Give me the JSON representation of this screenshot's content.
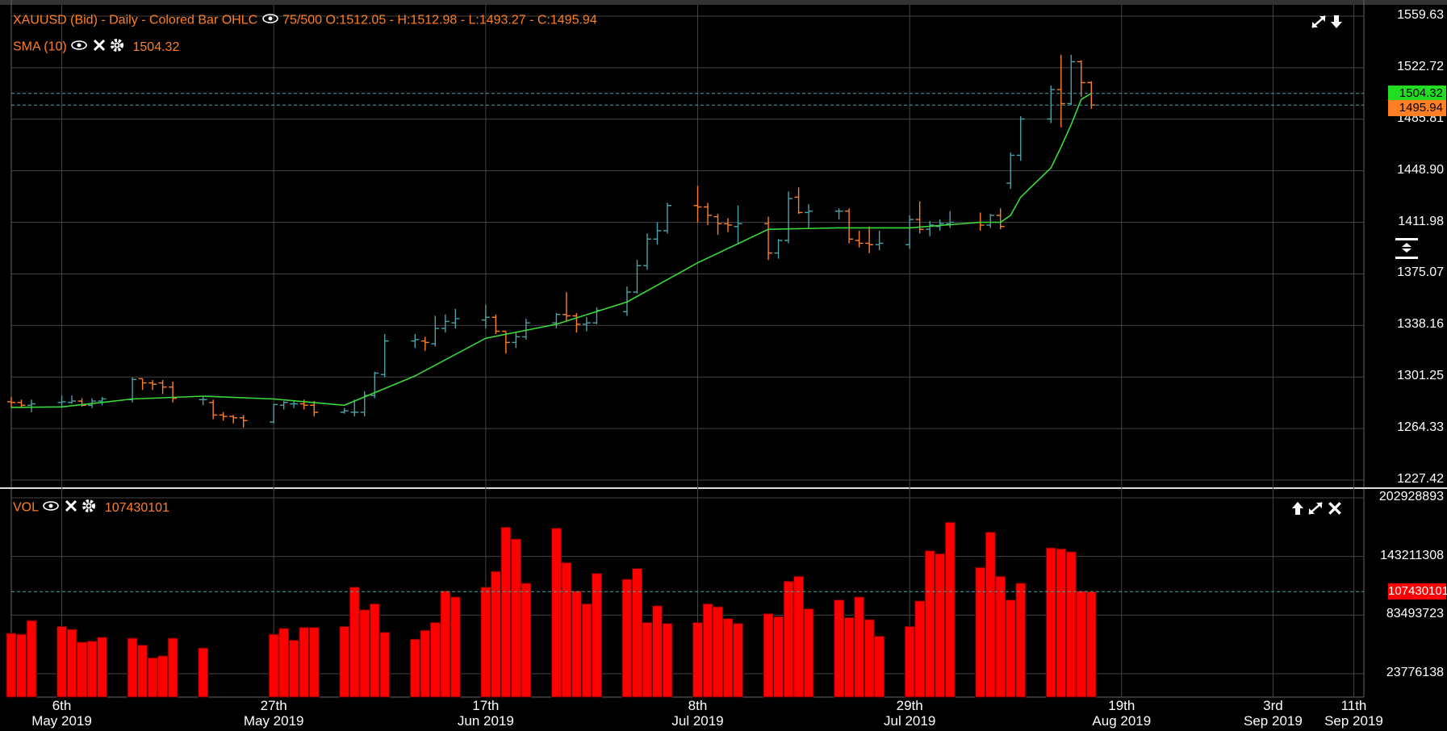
{
  "colors": {
    "up_bar": "#4aa3a8",
    "down_bar": "#ff7f24",
    "sma": "#3cd93c",
    "volume": "#ff0000",
    "grid": "#444444",
    "legend_text": "#ff7f24",
    "axis_text": "#ffffff",
    "sma_badge": "#22dd22",
    "close_badge": "#ff7f24",
    "vol_badge": "#ff0000"
  },
  "price_panel": {
    "title": "XAUUSD (Bid) - Daily - Colored Bar OHLC",
    "count": "75/500",
    "ohlc": "O:1512.05 - H:1512.98 - L:1493.27 - C:1495.94",
    "sma_label": "SMA (10)",
    "sma_value": "1504.32",
    "sma_badge": "1504.32",
    "close_badge": "1495.94",
    "icons": [
      "eye-icon",
      "close-icon",
      "gear-icon",
      "expand-icon",
      "arrow-down-icon"
    ]
  },
  "volume_panel": {
    "label": "VOL",
    "value": "107430101",
    "badge": "107430101",
    "icons": [
      "eye-icon",
      "close-icon",
      "gear-icon",
      "arrow-up-icon",
      "expand-icon",
      "close-icon"
    ]
  },
  "chart_data": {
    "type": "ohlc",
    "price_axis": {
      "ticks": [
        1559.63,
        1522.72,
        1485.81,
        1448.9,
        1411.98,
        1375.07,
        1338.16,
        1301.25,
        1264.33,
        1227.42
      ],
      "tick_labels": [
        "1559.63",
        "1522.72",
        "1485.81",
        "1448.90",
        "1411.98",
        "1375.07",
        "1338.16",
        "1301.25",
        "1264.33",
        "1227.42"
      ],
      "ylim": [
        1227.42,
        1559.63
      ]
    },
    "volume_axis": {
      "ticks": [
        202928893,
        143211308,
        83493723,
        23776138
      ],
      "tick_labels": [
        "202928893",
        "143211308",
        "83493723",
        "23776138"
      ],
      "ylim": [
        0,
        202928893
      ]
    },
    "x_axis": {
      "labels": [
        {
          "day": "6th",
          "month": "May 2019",
          "date": "2019-05-06"
        },
        {
          "day": "27th",
          "month": "May 2019",
          "date": "2019-05-27"
        },
        {
          "day": "17th",
          "month": "Jun 2019",
          "date": "2019-06-17"
        },
        {
          "day": "8th",
          "month": "Jul 2019",
          "date": "2019-07-08"
        },
        {
          "day": "29th",
          "month": "Jul 2019",
          "date": "2019-07-29"
        },
        {
          "day": "19th",
          "month": "Aug 2019",
          "date": "2019-08-19"
        },
        {
          "day": "3rd",
          "month": "Sep 2019",
          "date": "2019-09-03"
        },
        {
          "day": "11th",
          "month": "Sep 2019",
          "date": "2019-09-11"
        }
      ],
      "xlim": [
        "2019-05-01",
        "2019-09-12"
      ]
    },
    "bars": [
      {
        "date": "2019-05-01",
        "o": 1283.5,
        "h": 1287,
        "l": 1279,
        "c": 1283
      },
      {
        "date": "2019-05-02",
        "o": 1283,
        "h": 1285,
        "l": 1279,
        "c": 1281
      },
      {
        "date": "2019-05-03",
        "o": 1281,
        "h": 1285,
        "l": 1276,
        "c": 1282
      },
      {
        "date": "2019-05-06",
        "o": 1283,
        "h": 1288,
        "l": 1279,
        "c": 1283.5
      },
      {
        "date": "2019-05-07",
        "o": 1283,
        "h": 1288,
        "l": 1282,
        "c": 1284
      },
      {
        "date": "2019-05-08",
        "o": 1284,
        "h": 1286,
        "l": 1280,
        "c": 1281
      },
      {
        "date": "2019-05-09",
        "o": 1281,
        "h": 1286,
        "l": 1279,
        "c": 1284
      },
      {
        "date": "2019-05-10",
        "o": 1284,
        "h": 1287,
        "l": 1281,
        "c": 1285.5
      },
      {
        "date": "2019-05-13",
        "o": 1285,
        "h": 1301,
        "l": 1283,
        "c": 1299.5
      },
      {
        "date": "2019-05-14",
        "o": 1300,
        "h": 1300,
        "l": 1292,
        "c": 1297
      },
      {
        "date": "2019-05-15",
        "o": 1297,
        "h": 1299,
        "l": 1292,
        "c": 1296
      },
      {
        "date": "2019-05-16",
        "o": 1297,
        "h": 1299,
        "l": 1289,
        "c": 1294
      },
      {
        "date": "2019-05-17",
        "o": 1294,
        "h": 1298,
        "l": 1283,
        "c": 1286
      },
      {
        "date": "2019-05-20",
        "o": 1285,
        "h": 1287,
        "l": 1281,
        "c": 1285
      },
      {
        "date": "2019-05-21",
        "o": 1283,
        "h": 1285,
        "l": 1271,
        "c": 1274
      },
      {
        "date": "2019-05-22",
        "o": 1274,
        "h": 1276,
        "l": 1270,
        "c": 1273
      },
      {
        "date": "2019-05-23",
        "o": 1273,
        "h": 1274,
        "l": 1268,
        "c": 1272
      },
      {
        "date": "2019-05-24",
        "o": 1272,
        "h": 1274,
        "l": 1265,
        "c": 1270
      },
      {
        "date": "2019-05-27",
        "o": 1269,
        "h": 1282,
        "l": 1268,
        "c": 1281.5
      },
      {
        "date": "2019-05-28",
        "o": 1281,
        "h": 1284,
        "l": 1278,
        "c": 1283
      },
      {
        "date": "2019-05-29",
        "o": 1282,
        "h": 1284,
        "l": 1279,
        "c": 1282
      },
      {
        "date": "2019-05-30",
        "o": 1282,
        "h": 1285,
        "l": 1278,
        "c": 1281
      },
      {
        "date": "2019-05-31",
        "o": 1281,
        "h": 1284,
        "l": 1273,
        "c": 1276
      },
      {
        "date": "2019-06-03",
        "o": 1276,
        "h": 1279,
        "l": 1275,
        "c": 1277
      },
      {
        "date": "2019-06-04",
        "o": 1276,
        "h": 1285,
        "l": 1273,
        "c": 1276
      },
      {
        "date": "2019-06-05",
        "o": 1276,
        "h": 1291,
        "l": 1273,
        "c": 1288
      },
      {
        "date": "2019-06-06",
        "o": 1288,
        "h": 1305,
        "l": 1286,
        "c": 1304
      },
      {
        "date": "2019-06-07",
        "o": 1303,
        "h": 1332,
        "l": 1301,
        "c": 1327
      },
      {
        "date": "2019-06-10",
        "o": 1327,
        "h": 1332,
        "l": 1322,
        "c": 1328
      },
      {
        "date": "2019-06-11",
        "o": 1327,
        "h": 1330,
        "l": 1320,
        "c": 1326
      },
      {
        "date": "2019-06-12",
        "o": 1325,
        "h": 1345,
        "l": 1323,
        "c": 1336
      },
      {
        "date": "2019-06-13",
        "o": 1336,
        "h": 1346,
        "l": 1333,
        "c": 1341
      },
      {
        "date": "2019-06-14",
        "o": 1340,
        "h": 1350,
        "l": 1336,
        "c": 1343
      },
      {
        "date": "2019-06-17",
        "o": 1342,
        "h": 1353,
        "l": 1336,
        "c": 1344
      },
      {
        "date": "2019-06-18",
        "o": 1344,
        "h": 1346,
        "l": 1332,
        "c": 1334
      },
      {
        "date": "2019-06-19",
        "o": 1334,
        "h": 1334,
        "l": 1318,
        "c": 1326
      },
      {
        "date": "2019-06-20",
        "o": 1326,
        "h": 1333,
        "l": 1322,
        "c": 1330
      },
      {
        "date": "2019-06-21",
        "o": 1330,
        "h": 1343,
        "l": 1328,
        "c": 1340
      },
      {
        "date": "2019-06-24",
        "o": 1340,
        "h": 1347,
        "l": 1336,
        "c": 1346
      },
      {
        "date": "2019-06-25",
        "o": 1346,
        "h": 1362,
        "l": 1341,
        "c": 1345
      },
      {
        "date": "2019-06-26",
        "o": 1345,
        "h": 1347,
        "l": 1333,
        "c": 1339
      },
      {
        "date": "2019-06-27",
        "o": 1339,
        "h": 1344,
        "l": 1334,
        "c": 1340
      },
      {
        "date": "2019-06-28",
        "o": 1340,
        "h": 1351,
        "l": 1339,
        "c": 1349
      },
      {
        "date": "2019-07-01",
        "o": 1348,
        "h": 1366,
        "l": 1345,
        "c": 1362
      },
      {
        "date": "2019-07-02",
        "o": 1362,
        "h": 1385,
        "l": 1361,
        "c": 1381
      },
      {
        "date": "2019-07-03",
        "o": 1381,
        "h": 1404,
        "l": 1378,
        "c": 1400
      },
      {
        "date": "2019-07-04",
        "o": 1400,
        "h": 1412,
        "l": 1396,
        "c": 1406
      },
      {
        "date": "2019-07-05",
        "o": 1406,
        "h": 1426,
        "l": 1404,
        "c": 1424
      },
      {
        "date": "2019-07-08",
        "o": 1424,
        "h": 1438,
        "l": 1412,
        "c": 1423
      },
      {
        "date": "2019-07-09",
        "o": 1423,
        "h": 1426,
        "l": 1410,
        "c": 1417
      },
      {
        "date": "2019-07-10",
        "o": 1416,
        "h": 1418,
        "l": 1403,
        "c": 1411
      },
      {
        "date": "2019-07-11",
        "o": 1411,
        "h": 1415,
        "l": 1405,
        "c": 1410
      },
      {
        "date": "2019-07-12",
        "o": 1409,
        "h": 1424,
        "l": 1397,
        "c": 1411
      },
      {
        "date": "2019-07-15",
        "o": 1411,
        "h": 1416,
        "l": 1385,
        "c": 1390
      },
      {
        "date": "2019-07-16",
        "o": 1390,
        "h": 1400,
        "l": 1386,
        "c": 1399
      },
      {
        "date": "2019-07-17",
        "o": 1399,
        "h": 1434,
        "l": 1397,
        "c": 1429
      },
      {
        "date": "2019-07-18",
        "o": 1430,
        "h": 1437,
        "l": 1418,
        "c": 1419
      },
      {
        "date": "2019-07-19",
        "o": 1419,
        "h": 1425,
        "l": 1408,
        "c": 1420
      },
      {
        "date": "2019-07-22",
        "o": 1420,
        "h": 1422,
        "l": 1414,
        "c": 1420
      },
      {
        "date": "2019-07-23",
        "o": 1420,
        "h": 1422,
        "l": 1397,
        "c": 1400
      },
      {
        "date": "2019-07-24",
        "o": 1399,
        "h": 1406,
        "l": 1394,
        "c": 1397
      },
      {
        "date": "2019-07-25",
        "o": 1397,
        "h": 1409,
        "l": 1390,
        "c": 1396
      },
      {
        "date": "2019-07-26",
        "o": 1396,
        "h": 1406,
        "l": 1392,
        "c": 1397
      },
      {
        "date": "2019-07-29",
        "o": 1396,
        "h": 1417,
        "l": 1393,
        "c": 1414
      },
      {
        "date": "2019-07-30",
        "o": 1414,
        "h": 1427,
        "l": 1404,
        "c": 1407
      },
      {
        "date": "2019-07-31",
        "o": 1407,
        "h": 1413,
        "l": 1402,
        "c": 1410
      },
      {
        "date": "2019-08-01",
        "o": 1409,
        "h": 1414,
        "l": 1406,
        "c": 1411
      },
      {
        "date": "2019-08-02",
        "o": 1411,
        "h": 1420,
        "l": 1408,
        "c": 1412
      },
      {
        "date": "2019-08-05",
        "o": 1412,
        "h": 1419,
        "l": 1406,
        "c": 1410
      },
      {
        "date": "2019-08-06",
        "o": 1410,
        "h": 1418,
        "l": 1408,
        "c": 1417
      },
      {
        "date": "2019-08-07",
        "o": 1417,
        "h": 1422,
        "l": 1407,
        "c": 1409
      }
    ],
    "sma": {
      "name": "SMA (10)",
      "points": [
        {
          "date": "2019-05-01",
          "v": 1279.5
        },
        {
          "date": "2019-05-06",
          "v": 1279.8
        },
        {
          "date": "2019-05-13",
          "v": 1285.5
        },
        {
          "date": "2019-05-20",
          "v": 1287.5
        },
        {
          "date": "2019-05-27",
          "v": 1285.5
        },
        {
          "date": "2019-06-03",
          "v": 1281
        },
        {
          "date": "2019-06-10",
          "v": 1302
        },
        {
          "date": "2019-06-17",
          "v": 1329
        },
        {
          "date": "2019-06-24",
          "v": 1339
        },
        {
          "date": "2019-07-01",
          "v": 1355
        },
        {
          "date": "2019-07-08",
          "v": 1383
        },
        {
          "date": "2019-07-15",
          "v": 1407
        },
        {
          "date": "2019-07-22",
          "v": 1408
        },
        {
          "date": "2019-07-29",
          "v": 1408
        },
        {
          "date": "2019-08-05",
          "v": 1412
        },
        {
          "date": "2019-08-07",
          "v": 1412
        }
      ]
    },
    "volume": [
      {
        "date": "2019-05-01",
        "v": 65000000
      },
      {
        "date": "2019-05-02",
        "v": 64000000
      },
      {
        "date": "2019-05-03",
        "v": 78000000
      },
      {
        "date": "2019-05-06",
        "v": 72000000
      },
      {
        "date": "2019-05-07",
        "v": 69000000
      },
      {
        "date": "2019-05-08",
        "v": 56000000
      },
      {
        "date": "2019-05-09",
        "v": 57000000
      },
      {
        "date": "2019-05-10",
        "v": 61000000
      },
      {
        "date": "2019-05-13",
        "v": 60000000
      },
      {
        "date": "2019-05-14",
        "v": 53000000
      },
      {
        "date": "2019-05-15",
        "v": 40000000
      },
      {
        "date": "2019-05-16",
        "v": 42000000
      },
      {
        "date": "2019-05-17",
        "v": 60000000
      },
      {
        "date": "2019-05-20",
        "v": 50000000
      },
      {
        "date": "2019-05-27",
        "v": 64000000
      },
      {
        "date": "2019-05-28",
        "v": 70000000
      },
      {
        "date": "2019-05-29",
        "v": 58000000
      },
      {
        "date": "2019-05-30",
        "v": 71000000
      },
      {
        "date": "2019-05-31",
        "v": 71000000
      },
      {
        "date": "2019-06-03",
        "v": 72000000
      },
      {
        "date": "2019-06-04",
        "v": 112000000
      },
      {
        "date": "2019-06-05",
        "v": 89000000
      },
      {
        "date": "2019-06-06",
        "v": 95000000
      },
      {
        "date": "2019-06-07",
        "v": 66000000
      },
      {
        "date": "2019-06-10",
        "v": 59000000
      },
      {
        "date": "2019-06-11",
        "v": 68000000
      },
      {
        "date": "2019-06-12",
        "v": 76000000
      },
      {
        "date": "2019-06-13",
        "v": 108000000
      },
      {
        "date": "2019-06-14",
        "v": 102000000
      },
      {
        "date": "2019-06-17",
        "v": 112000000
      },
      {
        "date": "2019-06-18",
        "v": 128000000
      },
      {
        "date": "2019-06-19",
        "v": 173000000
      },
      {
        "date": "2019-06-20",
        "v": 161000000
      },
      {
        "date": "2019-06-21",
        "v": 116000000
      },
      {
        "date": "2019-06-24",
        "v": 172000000
      },
      {
        "date": "2019-06-25",
        "v": 137000000
      },
      {
        "date": "2019-06-26",
        "v": 108000000
      },
      {
        "date": "2019-06-27",
        "v": 95000000
      },
      {
        "date": "2019-06-28",
        "v": 126000000
      },
      {
        "date": "2019-07-01",
        "v": 120000000
      },
      {
        "date": "2019-07-02",
        "v": 131000000
      },
      {
        "date": "2019-07-03",
        "v": 76000000
      },
      {
        "date": "2019-07-04",
        "v": 93000000
      },
      {
        "date": "2019-07-05",
        "v": 75000000
      },
      {
        "date": "2019-07-08",
        "v": 76000000
      },
      {
        "date": "2019-07-09",
        "v": 95000000
      },
      {
        "date": "2019-07-10",
        "v": 92000000
      },
      {
        "date": "2019-07-11",
        "v": 80000000
      },
      {
        "date": "2019-07-12",
        "v": 75000000
      },
      {
        "date": "2019-07-15",
        "v": 85000000
      },
      {
        "date": "2019-07-16",
        "v": 82000000
      },
      {
        "date": "2019-07-17",
        "v": 118000000
      },
      {
        "date": "2019-07-18",
        "v": 123000000
      },
      {
        "date": "2019-07-19",
        "v": 90000000
      },
      {
        "date": "2019-07-22",
        "v": 99000000
      },
      {
        "date": "2019-07-23",
        "v": 81000000
      },
      {
        "date": "2019-07-24",
        "v": 102000000
      },
      {
        "date": "2019-07-25",
        "v": 79000000
      },
      {
        "date": "2019-07-26",
        "v": 62000000
      },
      {
        "date": "2019-07-29",
        "v": 72000000
      },
      {
        "date": "2019-07-30",
        "v": 98000000
      },
      {
        "date": "2019-07-31",
        "v": 149000000
      },
      {
        "date": "2019-08-01",
        "v": 146000000
      },
      {
        "date": "2019-08-02",
        "v": 178000000
      },
      {
        "date": "2019-08-05",
        "v": 132000000
      },
      {
        "date": "2019-08-06",
        "v": 168000000
      },
      {
        "date": "2019-08-07",
        "v": 123000000
      },
      {
        "date": "2019-08-08",
        "v": 99000000
      },
      {
        "date": "2019-08-09",
        "v": 116000000
      },
      {
        "date": "2019-08-12",
        "v": 152000000
      },
      {
        "date": "2019-08-13",
        "v": 151000000
      },
      {
        "date": "2019-08-14",
        "v": 148000000
      },
      {
        "date": "2019-08-15",
        "v": 108000000
      },
      {
        "date": "2019-08-16",
        "v": 107430101
      }
    ],
    "late_bars": [
      {
        "date": "2019-08-08",
        "o": 1440,
        "h": 1462,
        "l": 1436,
        "c": 1460
      },
      {
        "date": "2019-08-09",
        "o": 1460,
        "h": 1488,
        "l": 1456,
        "c": 1486
      },
      {
        "date": "2019-08-12",
        "o": 1486,
        "h": 1510,
        "l": 1483,
        "c": 1507
      },
      {
        "date": "2019-08-13",
        "o": 1507,
        "h": 1532,
        "l": 1480,
        "c": 1497
      },
      {
        "date": "2019-08-14",
        "o": 1497,
        "h": 1532,
        "l": 1496,
        "c": 1527
      },
      {
        "date": "2019-08-15",
        "o": 1527,
        "h": 1528,
        "l": 1502,
        "c": 1512
      },
      {
        "date": "2019-08-16",
        "o": 1512.05,
        "h": 1512.98,
        "l": 1493.27,
        "c": 1495.94
      }
    ]
  }
}
